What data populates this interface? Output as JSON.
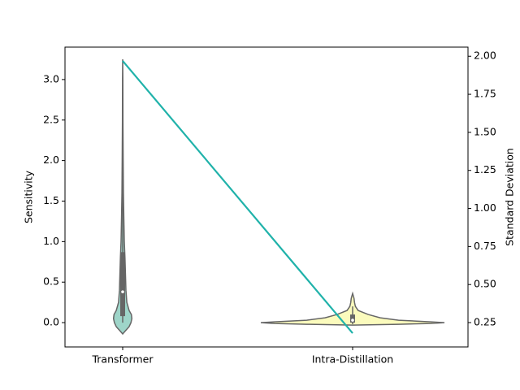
{
  "chart_data": {
    "type": "violin",
    "categories": [
      "Transformer",
      "Intra-Distillation"
    ],
    "y_label": "Sensitivity",
    "y2_label": "Standard Deviation",
    "ylim": [
      -0.3,
      3.4
    ],
    "yticks": [
      {
        "value": 0,
        "label": "0.0"
      },
      {
        "value": 0.5,
        "label": "0.5"
      },
      {
        "value": 1,
        "label": "1.0"
      },
      {
        "value": 1.5,
        "label": "1.5"
      },
      {
        "value": 2,
        "label": "2.0"
      },
      {
        "value": 2.5,
        "label": "2.5"
      },
      {
        "value": 3,
        "label": "3.0"
      }
    ],
    "y2lim": [
      0.09,
      2.06
    ],
    "y2ticks": [
      {
        "value": 0.25,
        "label": "0.25"
      },
      {
        "value": 0.5,
        "label": "0.50"
      },
      {
        "value": 0.75,
        "label": "0.75"
      },
      {
        "value": 1,
        "label": "1.00"
      },
      {
        "value": 1.25,
        "label": "1.25"
      },
      {
        "value": 1.5,
        "label": "1.50"
      },
      {
        "value": 1.75,
        "label": "1.75"
      },
      {
        "value": 2,
        "label": "2.00"
      }
    ],
    "violins": [
      {
        "color": "#9ed5c9",
        "y": [
          -0.14,
          -0.1,
          -0.05,
          0,
          0.05,
          0.1,
          0.15,
          0.25,
          0.4,
          0.6,
          0.8,
          1,
          1.3,
          1.6,
          2,
          2.5,
          3,
          3.25
        ],
        "width": [
          0,
          0.03,
          0.07,
          0.09,
          0.1,
          0.095,
          0.07,
          0.045,
          0.035,
          0.03,
          0.025,
          0.018,
          0.012,
          0.008,
          0.005,
          0.003,
          0.002,
          0
        ],
        "q1": 0.08,
        "median": 0.38,
        "q3": 0.87,
        "whisker_low": 0,
        "whisker_high": 2
      },
      {
        "color": "#fbfbbd",
        "y": [
          -0.03,
          -0.02,
          -0.01,
          0,
          0.01,
          0.03,
          0.06,
          0.1,
          0.15,
          0.2,
          0.25,
          0.3,
          0.36
        ],
        "width": [
          0,
          0.5,
          0.85,
          1,
          0.85,
          0.5,
          0.3,
          0.17,
          0.06,
          0.03,
          0.02,
          0.015,
          0
        ],
        "q1": 0,
        "median": 0.03,
        "q3": 0.1,
        "whisker_low": -0.02,
        "whisker_high": 0.2
      }
    ],
    "series": [
      {
        "color": "#20b2aa",
        "values": [
          1.97,
          0.18
        ],
        "axis": "y2"
      }
    ]
  }
}
